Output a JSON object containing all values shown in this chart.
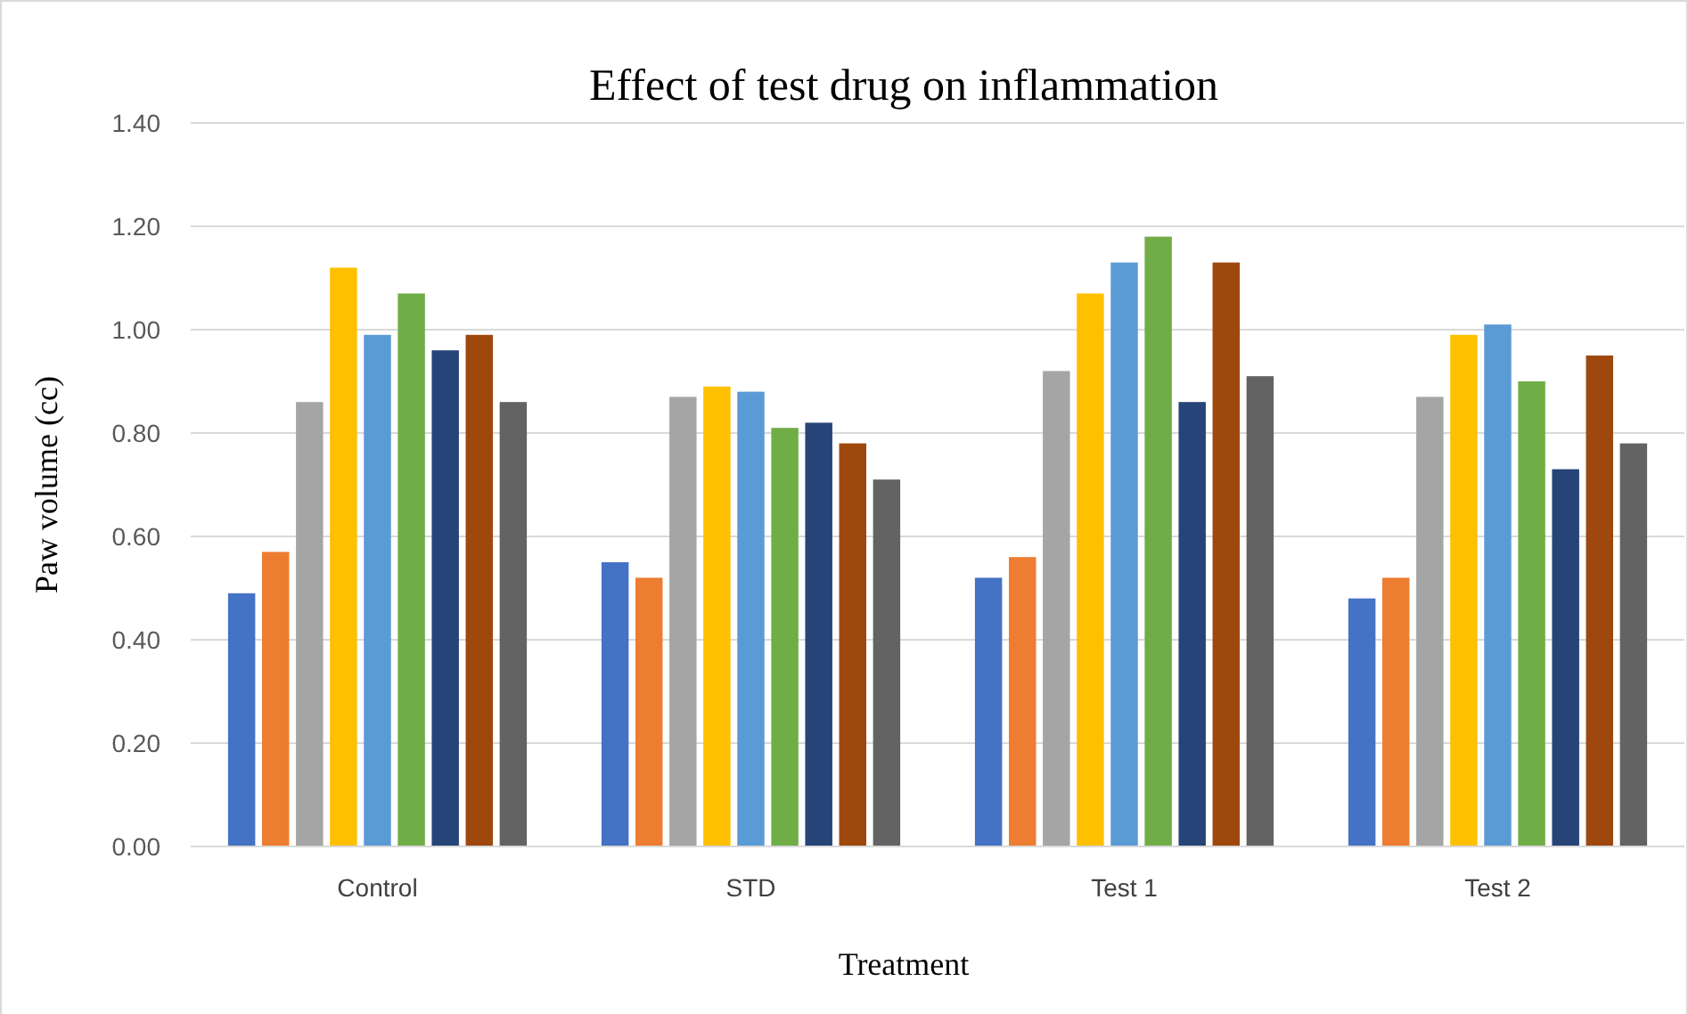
{
  "chart_data": {
    "type": "bar",
    "title": "Effect of test drug on inflammation",
    "xlabel": "Treatment",
    "ylabel": "Paw volume (cc)",
    "categories": [
      "Control",
      "STD",
      "Test 1",
      "Test 2"
    ],
    "series": [
      {
        "color": "#4472c4",
        "values": [
          0.49,
          0.55,
          0.52,
          0.48
        ]
      },
      {
        "color": "#ed7d31",
        "values": [
          0.57,
          0.52,
          0.56,
          0.52
        ]
      },
      {
        "color": "#a5a5a5",
        "values": [
          0.86,
          0.87,
          0.92,
          0.87
        ]
      },
      {
        "color": "#ffc000",
        "values": [
          1.12,
          0.89,
          1.07,
          0.99
        ]
      },
      {
        "color": "#5b9bd5",
        "values": [
          0.99,
          0.88,
          1.13,
          1.01
        ]
      },
      {
        "color": "#70ad47",
        "values": [
          1.07,
          0.81,
          1.18,
          0.9
        ]
      },
      {
        "color": "#264478",
        "values": [
          0.96,
          0.82,
          0.86,
          0.73
        ]
      },
      {
        "color": "#9e480e",
        "values": [
          0.99,
          0.78,
          1.13,
          0.95
        ]
      },
      {
        "color": "#636363",
        "values": [
          0.86,
          0.71,
          0.91,
          0.78
        ]
      }
    ],
    "ylim": [
      0,
      1.4
    ],
    "yticks": [
      {
        "value": 0,
        "label": "0.00"
      },
      {
        "value": 0.2,
        "label": "0.20"
      },
      {
        "value": 0.4,
        "label": "0.40"
      },
      {
        "value": 0.6,
        "label": "0.60"
      },
      {
        "value": 0.8,
        "label": "0.80"
      },
      {
        "value": 1.0,
        "label": "1.00"
      },
      {
        "value": 1.2,
        "label": "1.20"
      },
      {
        "value": 1.4,
        "label": "1.40"
      }
    ],
    "grid": "y"
  }
}
